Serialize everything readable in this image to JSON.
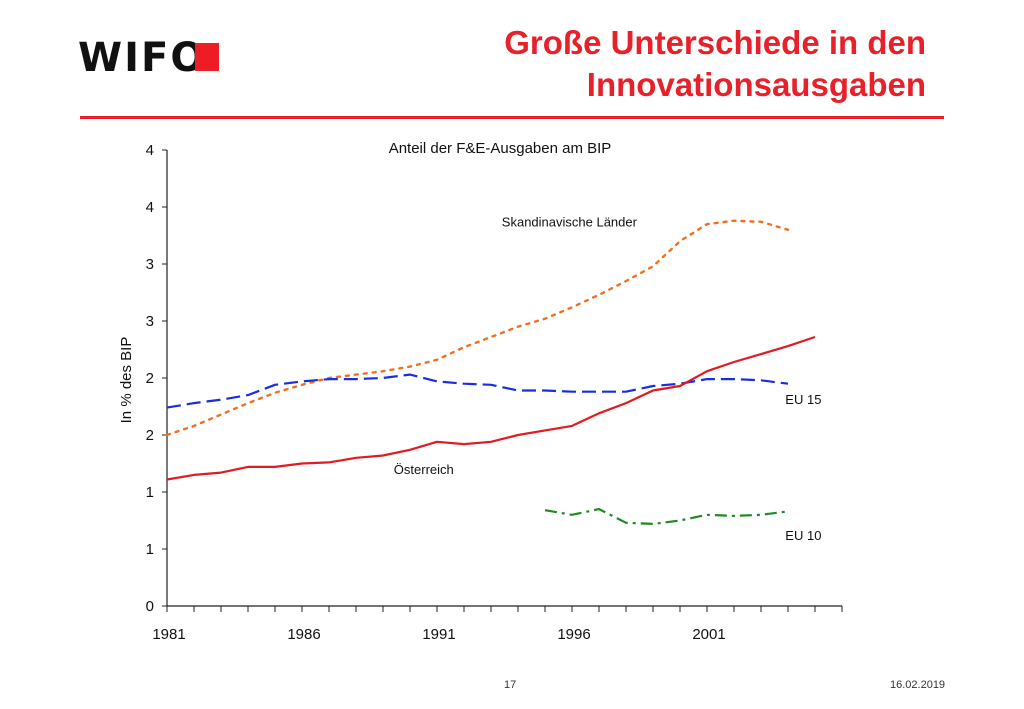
{
  "logo": {
    "text": "WIFO",
    "accent_color": "#ee1c25"
  },
  "header": {
    "title_line1": "Große Unterschiede in den",
    "title_line2": "Innovationsausgaben"
  },
  "footer": {
    "page_number": "17",
    "date": "16.02.2019"
  },
  "chart_data": {
    "type": "line",
    "title": "Anteil der F&E-Ausgaben am BIP",
    "ylabel": "In % des BIP",
    "xlabel": "",
    "x": [
      1981,
      1982,
      1983,
      1984,
      1985,
      1986,
      1987,
      1988,
      1989,
      1990,
      1991,
      1992,
      1993,
      1994,
      1995,
      1996,
      1997,
      1998,
      1999,
      2000,
      2001,
      2002,
      2003,
      2004,
      2005
    ],
    "xlim": [
      1981,
      2006
    ],
    "x_ticks": [
      1981,
      1986,
      1991,
      1996,
      2001
    ],
    "ylim": [
      0,
      4
    ],
    "y_tick_values": [
      0,
      0.5,
      1,
      1.5,
      2,
      2.5,
      3,
      3.5,
      4
    ],
    "y_tick_labels": [
      "0",
      "1",
      "1",
      "2",
      "2",
      "3",
      "3",
      "4",
      "4"
    ],
    "grid": false,
    "series": [
      {
        "name": "Skandinavische Länder",
        "color": "#f07020",
        "dash": "dotted",
        "values": [
          1.5,
          1.58,
          1.68,
          1.78,
          1.87,
          1.94,
          2.0,
          2.03,
          2.06,
          2.1,
          2.16,
          2.27,
          2.36,
          2.45,
          2.52,
          2.62,
          2.73,
          2.85,
          2.98,
          3.2,
          3.35,
          3.38,
          3.37,
          3.3,
          null
        ]
      },
      {
        "name": "EU 15",
        "color": "#1a2ee0",
        "dash": "dashed",
        "values": [
          1.74,
          1.78,
          1.81,
          1.85,
          1.94,
          1.97,
          1.99,
          1.99,
          2.0,
          2.03,
          1.97,
          1.95,
          1.94,
          1.89,
          1.89,
          1.88,
          1.88,
          1.88,
          1.93,
          1.95,
          1.99,
          1.99,
          1.98,
          1.95,
          null
        ]
      },
      {
        "name": "Österreich",
        "color": "#e11b22",
        "dash": "solid",
        "values": [
          1.11,
          1.15,
          1.17,
          1.22,
          1.22,
          1.25,
          1.26,
          1.3,
          1.32,
          1.37,
          1.44,
          1.42,
          1.44,
          1.5,
          1.54,
          1.58,
          1.69,
          1.78,
          1.89,
          1.93,
          2.06,
          2.14,
          2.21,
          2.28,
          2.36
        ]
      },
      {
        "name": "EU 10",
        "color": "#1f8a1f",
        "dash": "dashdot",
        "values": [
          null,
          null,
          null,
          null,
          null,
          null,
          null,
          null,
          null,
          null,
          null,
          null,
          null,
          null,
          0.84,
          0.8,
          0.85,
          0.73,
          0.72,
          0.75,
          0.8,
          0.79,
          0.8,
          0.83,
          null
        ]
      }
    ],
    "annotations": [
      {
        "text": "Skandinavische Länder",
        "x": 1993.4,
        "y": 3.33
      },
      {
        "text": "EU 15",
        "x": 2003.9,
        "y": 1.77
      },
      {
        "text": "Österreich",
        "x": 1989.4,
        "y": 1.16
      },
      {
        "text": "EU 10",
        "x": 2003.9,
        "y": 0.58
      }
    ]
  }
}
